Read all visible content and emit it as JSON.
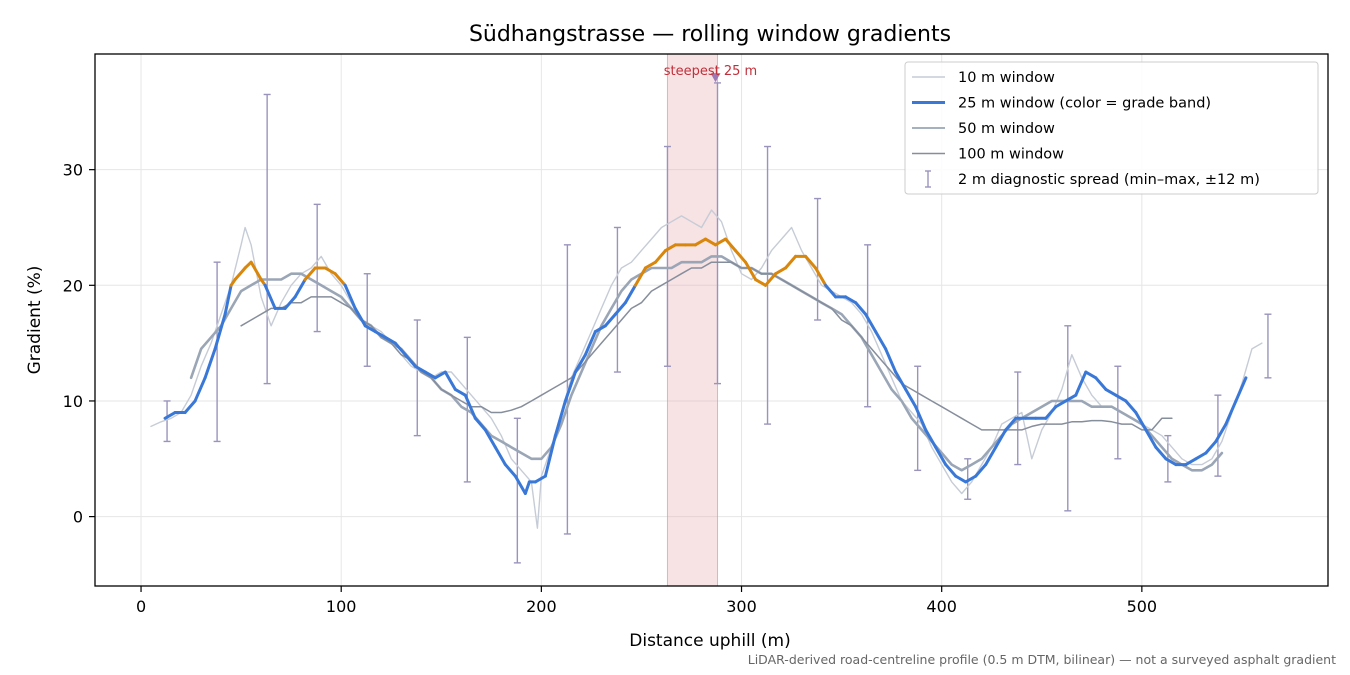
{
  "chart_data": {
    "type": "line",
    "title": "Südhangstrasse — rolling window gradients",
    "xlabel": "Distance uphill (m)",
    "ylabel": "Gradient (%)",
    "xlim": [
      -23,
      593
    ],
    "ylim": [
      -6,
      40
    ],
    "x_ticks": [
      "0",
      "100",
      "200",
      "300",
      "400",
      "500"
    ],
    "y_ticks": [
      "0",
      "10",
      "20",
      "30"
    ],
    "grid": true,
    "legend_position": "upper-right",
    "colors": {
      "w10": "#c6ccd6",
      "w25_band_lo": "#3a78d8",
      "w25_band_hi": "#d9860c",
      "w50": "#9aa6b6",
      "w100": "#868e9c",
      "errbar": "#9a94bd",
      "highlight": "#e8a7ad",
      "marker": "#9b79b6"
    },
    "series": [
      {
        "name": "10 m window",
        "x": [
          5,
          10,
          15,
          20,
          25,
          30,
          35,
          40,
          45,
          50,
          52,
          55,
          60,
          65,
          70,
          75,
          80,
          85,
          90,
          95,
          100,
          105,
          110,
          115,
          120,
          125,
          130,
          135,
          140,
          145,
          150,
          155,
          160,
          165,
          170,
          175,
          180,
          185,
          190,
          195,
          198,
          200,
          205,
          210,
          215,
          220,
          225,
          230,
          235,
          240,
          245,
          250,
          255,
          260,
          265,
          270,
          275,
          280,
          285,
          290,
          295,
          300,
          305,
          310,
          315,
          320,
          325,
          330,
          335,
          340,
          345,
          350,
          355,
          360,
          365,
          370,
          375,
          380,
          385,
          390,
          395,
          400,
          405,
          410,
          415,
          420,
          425,
          430,
          435,
          440,
          445,
          450,
          455,
          460,
          465,
          470,
          475,
          480,
          485,
          490,
          495,
          500,
          505,
          510,
          515,
          520,
          525,
          530,
          535,
          540,
          545,
          550,
          555,
          560
        ],
        "y": [
          7.8,
          8.2,
          8.5,
          9.0,
          10.5,
          13.0,
          15.0,
          17.5,
          20.0,
          23.5,
          25.0,
          23.5,
          19.0,
          16.5,
          18.5,
          20.0,
          21.0,
          21.5,
          22.5,
          21.0,
          20.0,
          18.5,
          17.0,
          16.5,
          16.0,
          15.0,
          14.0,
          13.0,
          12.5,
          12.0,
          12.5,
          12.5,
          11.5,
          10.5,
          9.5,
          8.5,
          7.0,
          5.0,
          4.0,
          3.0,
          -1.0,
          3.5,
          6.0,
          9.0,
          12.0,
          14.0,
          16.0,
          18.0,
          20.0,
          21.5,
          22.0,
          23.0,
          24.0,
          25.0,
          25.5,
          26.0,
          25.5,
          25.0,
          26.5,
          25.5,
          23.0,
          21.0,
          20.5,
          21.5,
          23.0,
          24.0,
          25.0,
          23.0,
          21.5,
          20.0,
          19.5,
          19.0,
          18.5,
          17.5,
          16.0,
          14.0,
          12.0,
          10.0,
          9.0,
          8.0,
          6.0,
          4.5,
          3.0,
          2.0,
          3.0,
          4.5,
          6.0,
          8.0,
          8.5,
          9.0,
          5.0,
          7.5,
          9.0,
          11.0,
          14.0,
          12.0,
          10.5,
          9.5,
          9.5,
          9.0,
          8.5,
          8.0,
          7.5,
          7.0,
          6.0,
          5.0,
          4.5,
          4.5,
          5.0,
          6.5,
          9.0,
          11.5,
          14.5,
          15.0
        ]
      },
      {
        "name": "25 m window (color = grade band)",
        "band_threshold": 20,
        "x": [
          12,
          17,
          22,
          27,
          32,
          37,
          42,
          45,
          47,
          52,
          55,
          60,
          62,
          67,
          72,
          77,
          82,
          87,
          92,
          97,
          102,
          107,
          112,
          117,
          122,
          127,
          132,
          137,
          142,
          147,
          152,
          157,
          162,
          167,
          172,
          177,
          182,
          187,
          192,
          194,
          197,
          202,
          207,
          212,
          217,
          222,
          227,
          232,
          237,
          242,
          247,
          252,
          257,
          262,
          267,
          272,
          277,
          282,
          287,
          292,
          297,
          302,
          307,
          312,
          317,
          322,
          327,
          332,
          337,
          342,
          347,
          352,
          357,
          362,
          367,
          372,
          377,
          382,
          387,
          392,
          397,
          402,
          407,
          412,
          417,
          422,
          427,
          432,
          437,
          442,
          447,
          452,
          457,
          462,
          467,
          472,
          477,
          482,
          487,
          492,
          497,
          502,
          507,
          512,
          517,
          522,
          527,
          532,
          537,
          542,
          547,
          552
        ],
        "y": [
          8.5,
          9.0,
          9.0,
          10.0,
          12.0,
          14.5,
          17.5,
          20.0,
          20.5,
          21.5,
          22.0,
          20.5,
          20.0,
          18.0,
          18.0,
          19.0,
          20.5,
          21.5,
          21.5,
          21.0,
          20.0,
          18.0,
          16.5,
          16.0,
          15.5,
          15.0,
          14.0,
          13.0,
          12.5,
          12.0,
          12.5,
          11.0,
          10.5,
          8.5,
          7.5,
          6.0,
          4.5,
          3.5,
          2.0,
          3.0,
          3.0,
          3.5,
          7.0,
          10.0,
          12.5,
          14.0,
          16.0,
          16.5,
          17.5,
          18.5,
          20.0,
          21.5,
          22.0,
          23.0,
          23.5,
          23.5,
          23.5,
          24.0,
          23.5,
          24.0,
          23.0,
          22.0,
          20.5,
          20.0,
          21.0,
          21.5,
          22.5,
          22.5,
          21.5,
          20.0,
          19.0,
          19.0,
          18.5,
          17.5,
          16.0,
          14.5,
          12.5,
          11.0,
          9.5,
          7.5,
          6.0,
          4.5,
          3.5,
          3.0,
          3.5,
          4.5,
          6.0,
          7.5,
          8.5,
          8.5,
          8.5,
          8.5,
          9.5,
          10.0,
          10.5,
          12.5,
          12.0,
          11.0,
          10.5,
          10.0,
          9.0,
          7.5,
          6.0,
          5.0,
          4.5,
          4.5,
          5.0,
          5.5,
          6.5,
          8.0,
          10.0,
          12.0
        ]
      },
      {
        "name": "50 m window",
        "x": [
          25,
          30,
          35,
          40,
          45,
          50,
          55,
          60,
          65,
          70,
          75,
          80,
          85,
          90,
          95,
          100,
          105,
          110,
          115,
          120,
          125,
          130,
          135,
          140,
          145,
          150,
          155,
          160,
          165,
          170,
          175,
          180,
          185,
          190,
          195,
          200,
          205,
          210,
          215,
          220,
          225,
          230,
          235,
          240,
          245,
          250,
          255,
          260,
          265,
          270,
          275,
          280,
          285,
          290,
          295,
          300,
          305,
          310,
          315,
          320,
          325,
          330,
          335,
          340,
          345,
          350,
          355,
          360,
          365,
          370,
          375,
          380,
          385,
          390,
          395,
          400,
          405,
          410,
          415,
          420,
          425,
          430,
          435,
          440,
          445,
          450,
          455,
          460,
          465,
          470,
          475,
          480,
          485,
          490,
          495,
          500,
          505,
          510,
          515,
          520,
          525,
          530,
          535,
          540
        ],
        "y": [
          12.0,
          14.5,
          15.5,
          16.5,
          18.0,
          19.5,
          20.0,
          20.5,
          20.5,
          20.5,
          21.0,
          21.0,
          20.5,
          20.0,
          19.5,
          19.0,
          18.0,
          17.0,
          16.5,
          15.5,
          15.0,
          14.5,
          13.5,
          12.5,
          12.0,
          11.0,
          10.5,
          9.5,
          9.0,
          8.0,
          7.0,
          6.5,
          6.0,
          5.5,
          5.0,
          5.0,
          6.0,
          8.0,
          10.5,
          12.5,
          14.5,
          16.5,
          18.0,
          19.5,
          20.5,
          21.0,
          21.5,
          21.5,
          21.5,
          22.0,
          22.0,
          22.0,
          22.5,
          22.5,
          22.0,
          21.5,
          21.5,
          21.0,
          21.0,
          20.5,
          20.0,
          19.5,
          19.0,
          18.5,
          18.0,
          17.5,
          16.5,
          15.5,
          14.0,
          12.5,
          11.0,
          10.0,
          8.5,
          7.5,
          6.5,
          5.5,
          4.5,
          4.0,
          4.5,
          5.0,
          6.0,
          7.0,
          8.0,
          8.5,
          9.0,
          9.5,
          10.0,
          10.0,
          10.0,
          10.0,
          9.5,
          9.5,
          9.5,
          9.0,
          8.5,
          8.0,
          7.0,
          6.0,
          5.0,
          4.5,
          4.0,
          4.0,
          4.5,
          5.5
        ]
      },
      {
        "name": "100 m window",
        "x": [
          50,
          55,
          60,
          65,
          70,
          75,
          80,
          85,
          90,
          95,
          100,
          105,
          110,
          115,
          120,
          125,
          130,
          135,
          140,
          145,
          150,
          155,
          160,
          165,
          170,
          175,
          180,
          185,
          190,
          195,
          200,
          205,
          210,
          215,
          220,
          225,
          230,
          235,
          240,
          245,
          250,
          255,
          260,
          265,
          270,
          275,
          280,
          285,
          290,
          295,
          300,
          305,
          310,
          315,
          320,
          325,
          330,
          335,
          340,
          345,
          350,
          355,
          360,
          365,
          370,
          375,
          380,
          385,
          390,
          395,
          400,
          405,
          410,
          415,
          420,
          425,
          430,
          435,
          440,
          445,
          450,
          455,
          460,
          465,
          470,
          475,
          480,
          485,
          490,
          495,
          500,
          505,
          510,
          515
        ],
        "y": [
          16.5,
          17.0,
          17.5,
          18.0,
          18.0,
          18.5,
          18.5,
          19.0,
          19.0,
          19.0,
          18.5,
          18.0,
          17.0,
          16.5,
          15.5,
          15.0,
          14.0,
          13.5,
          12.5,
          12.0,
          11.0,
          10.5,
          10.0,
          9.5,
          9.5,
          9.0,
          9.0,
          9.2,
          9.5,
          10.0,
          10.5,
          11.0,
          11.5,
          12.0,
          13.0,
          14.0,
          15.0,
          16.0,
          17.0,
          18.0,
          18.5,
          19.5,
          20.0,
          20.5,
          21.0,
          21.5,
          21.5,
          22.0,
          22.0,
          22.0,
          21.5,
          21.5,
          21.0,
          21.0,
          20.5,
          20.0,
          19.5,
          19.0,
          18.5,
          18.0,
          17.0,
          16.5,
          15.5,
          14.5,
          13.5,
          12.5,
          11.5,
          11.0,
          10.5,
          10.0,
          9.5,
          9.0,
          8.5,
          8.0,
          7.5,
          7.5,
          7.5,
          7.5,
          7.5,
          7.8,
          8.0,
          8.0,
          8.0,
          8.2,
          8.2,
          8.3,
          8.3,
          8.2,
          8.0,
          8.0,
          7.5,
          7.5,
          8.5,
          8.5
        ]
      },
      {
        "name": "2 m diagnostic spread (min–max, ±12 m)",
        "x": [
          13,
          38,
          63,
          88,
          113,
          138,
          163,
          188,
          213,
          238,
          263,
          288,
          313,
          338,
          363,
          388,
          413,
          438,
          463,
          488,
          513,
          538,
          563
        ],
        "low": [
          6.5,
          6.5,
          11.5,
          16.0,
          13.0,
          7.0,
          3.0,
          -4.0,
          -1.5,
          12.5,
          13.0,
          11.5,
          8.0,
          17.0,
          9.5,
          4.0,
          1.5,
          4.5,
          0.5,
          5.0,
          3.0,
          3.5,
          12.0
        ],
        "high": [
          10.0,
          22.0,
          36.5,
          27.0,
          21.0,
          17.0,
          15.5,
          8.5,
          23.5,
          25.0,
          32.0,
          37.5,
          32.0,
          27.5,
          23.5,
          13.0,
          5.0,
          12.5,
          16.5,
          13.0,
          7.0,
          10.5,
          17.5
        ]
      }
    ],
    "annotations": [
      {
        "label": "steepest 25 m",
        "x_range": [
          263,
          288
        ],
        "marker_x": 287,
        "marker_y": 38
      }
    ],
    "footnote": "LiDAR-derived road-centreline profile (0.5 m DTM, bilinear) — not a surveyed asphalt gradient"
  }
}
